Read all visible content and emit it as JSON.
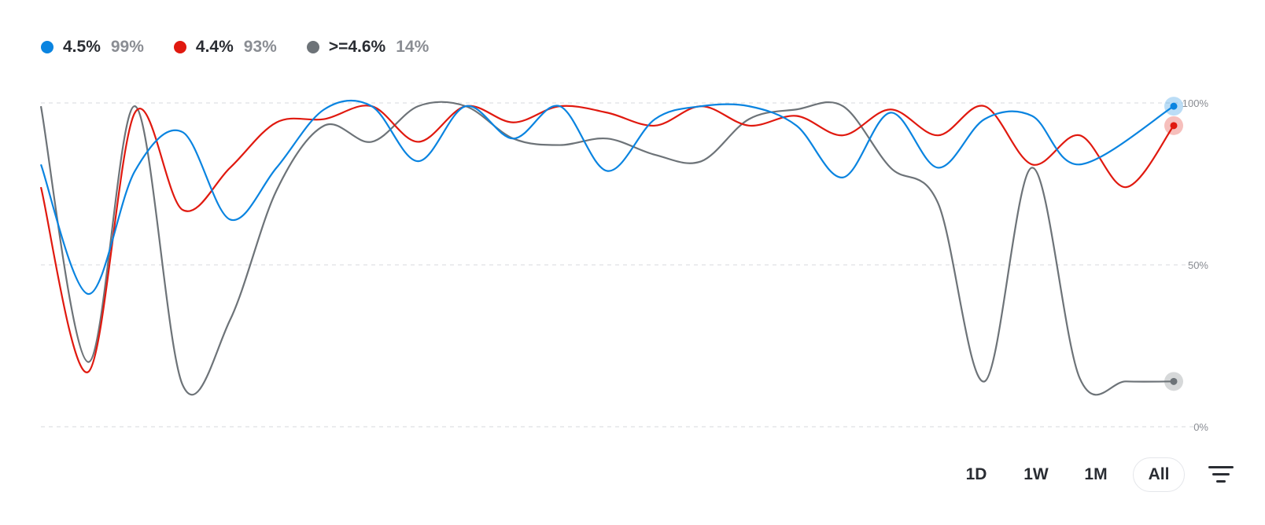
{
  "legend": [
    {
      "name": "4.5%",
      "value": "99%",
      "color": "#0a84e0"
    },
    {
      "name": "4.4%",
      "value": "93%",
      "color": "#e0190f"
    },
    {
      "name": ">=4.6%",
      "value": "14%",
      "color": "#6d7378"
    }
  ],
  "controls": {
    "range_buttons": [
      "1D",
      "1W",
      "1M",
      "All"
    ],
    "active_range": "All",
    "filter_icon": "filter-lines-icon"
  },
  "chart_data": {
    "type": "line",
    "title": "",
    "xlabel": "",
    "ylabel": "",
    "ylim": [
      0,
      100
    ],
    "yticks": [
      0,
      50,
      100
    ],
    "ytick_labels": [
      "0%",
      "50%",
      "100%"
    ],
    "grid": true,
    "legend_position": "top-left",
    "x": [
      0,
      5,
      10,
      15,
      20,
      25,
      30,
      35,
      40,
      45,
      50,
      55,
      60,
      65,
      70,
      75,
      80,
      85,
      90,
      95,
      100
    ],
    "series": [
      {
        "name": "4.5%",
        "color": "#0a84e0",
        "values": [
          81,
          41,
          79,
          91,
          64,
          80,
          98,
          99,
          82,
          99,
          89,
          99,
          79,
          95,
          99,
          99,
          93,
          77,
          97,
          80,
          95,
          96,
          81,
          99
        ],
        "x": [
          0,
          4.2,
          8.3,
          12.5,
          16.7,
          20.8,
          25,
          29.2,
          33.3,
          37.5,
          41.7,
          45.8,
          50,
          54.2,
          58.3,
          62.5,
          66.7,
          70.8,
          75,
          79.2,
          83.3,
          87.5,
          91.7,
          100
        ]
      },
      {
        "name": "4.4%",
        "color": "#e0190f",
        "values": [
          74,
          17,
          97,
          67,
          80,
          94,
          95,
          99,
          88,
          99,
          94,
          99,
          97,
          93,
          99,
          93,
          96,
          90,
          98,
          90,
          99,
          81,
          90,
          74,
          93
        ],
        "x": [
          0,
          4.2,
          8.3,
          12.5,
          16.7,
          20.8,
          25,
          29.2,
          33.3,
          37.5,
          41.7,
          45.8,
          50,
          54.2,
          58.3,
          62.5,
          66.7,
          70.8,
          75,
          79.2,
          83.3,
          87.5,
          91.7,
          95.8,
          100
        ]
      },
      {
        "name": ">=4.6%",
        "color": "#6d7378",
        "values": [
          99,
          20,
          99,
          13,
          33,
          73,
          93,
          88,
          99,
          99,
          89,
          87,
          89,
          84,
          82,
          95,
          98,
          99,
          80,
          69,
          14,
          80,
          15,
          14,
          14
        ],
        "x": [
          0,
          4.2,
          8.3,
          12.5,
          16.7,
          20.8,
          25,
          29.2,
          33.3,
          37.5,
          41.7,
          45.8,
          50,
          54.2,
          58.3,
          62.5,
          66.7,
          70.8,
          75,
          79.2,
          83.3,
          87.5,
          91.7,
          95.8,
          100
        ]
      }
    ]
  }
}
